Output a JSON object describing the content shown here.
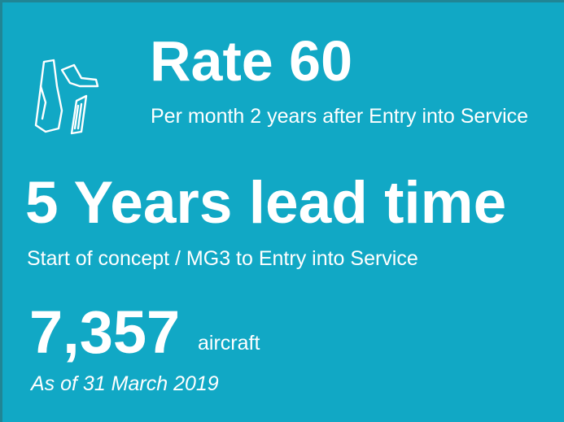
{
  "rate": {
    "title": "Rate 60",
    "subtitle": "Per month 2 years after Entry into Service"
  },
  "lead_time": {
    "title": "5 Years lead time",
    "subtitle": "Start of concept / MG3 to Entry into Service"
  },
  "fleet": {
    "count": "7,357",
    "unit": "aircraft",
    "note": "As of 31 March 2019"
  }
}
